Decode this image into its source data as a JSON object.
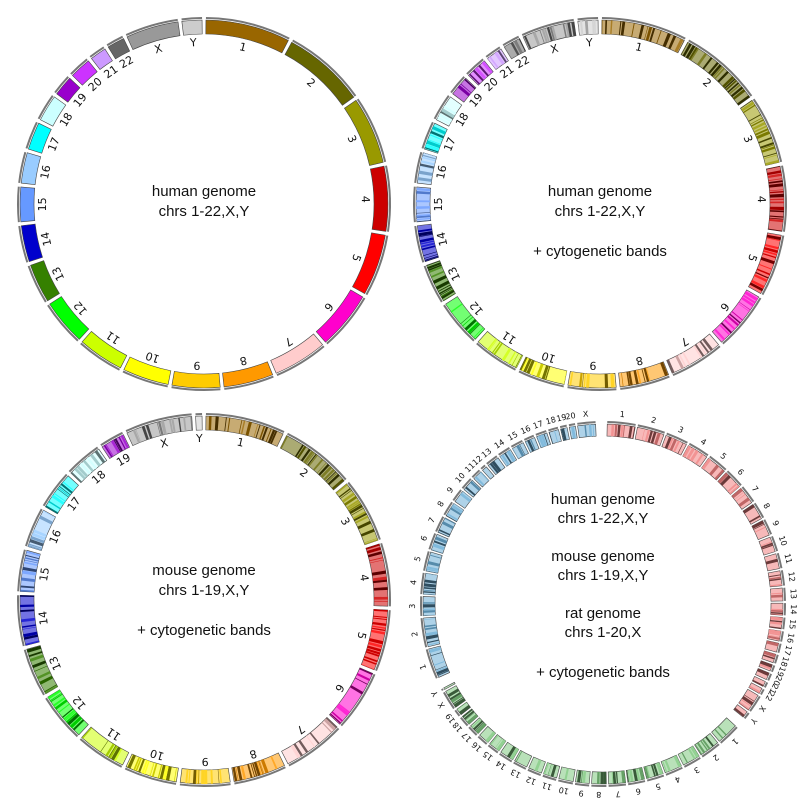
{
  "panels": [
    {
      "id": "human",
      "text_lines": [
        "human genome",
        "chrs 1-22,X,Y"
      ],
      "banded": false,
      "chromosomes": [
        {
          "label": "1",
          "size": 249,
          "color": "#996600"
        },
        {
          "label": "2",
          "size": 243,
          "color": "#666600"
        },
        {
          "label": "3",
          "size": 198,
          "color": "#999900"
        },
        {
          "label": "4",
          "size": 191,
          "color": "#cc0000"
        },
        {
          "label": "5",
          "size": 181,
          "color": "#ff0000"
        },
        {
          "label": "6",
          "size": 171,
          "color": "#ff00cc"
        },
        {
          "label": "7",
          "size": 159,
          "color": "#ffcccc"
        },
        {
          "label": "8",
          "size": 146,
          "color": "#ff9900"
        },
        {
          "label": "9",
          "size": 141,
          "color": "#ffcc00"
        },
        {
          "label": "10",
          "size": 136,
          "color": "#ffff00"
        },
        {
          "label": "11",
          "size": 135,
          "color": "#ccff00"
        },
        {
          "label": "12",
          "size": 134,
          "color": "#00ff00"
        },
        {
          "label": "13",
          "size": 115,
          "color": "#358000"
        },
        {
          "label": "14",
          "size": 107,
          "color": "#0000cc"
        },
        {
          "label": "15",
          "size": 102,
          "color": "#6699ff"
        },
        {
          "label": "16",
          "size": 90,
          "color": "#99ccff"
        },
        {
          "label": "17",
          "size": 81,
          "color": "#00ffff"
        },
        {
          "label": "18",
          "size": 78,
          "color": "#ccffff"
        },
        {
          "label": "19",
          "size": 59,
          "color": "#9900cc"
        },
        {
          "label": "20",
          "size": 63,
          "color": "#cc33ff"
        },
        {
          "label": "21",
          "size": 48,
          "color": "#cc99ff"
        },
        {
          "label": "22",
          "size": 51,
          "color": "#666666"
        },
        {
          "label": "X",
          "size": 155,
          "color": "#999999"
        },
        {
          "label": "Y",
          "size": 59,
          "color": "#cccccc"
        }
      ]
    },
    {
      "id": "human-bands",
      "text_lines": [
        "human genome",
        "chrs 1-22,X,Y",
        "",
        "+ cytogenetic bands"
      ],
      "banded": true,
      "chromosomes": [
        {
          "label": "1",
          "size": 249,
          "color": "#996600"
        },
        {
          "label": "2",
          "size": 243,
          "color": "#666600"
        },
        {
          "label": "3",
          "size": 198,
          "color": "#999900"
        },
        {
          "label": "4",
          "size": 191,
          "color": "#cc0000"
        },
        {
          "label": "5",
          "size": 181,
          "color": "#ff0000"
        },
        {
          "label": "6",
          "size": 171,
          "color": "#ff00cc"
        },
        {
          "label": "7",
          "size": 159,
          "color": "#ffcccc"
        },
        {
          "label": "8",
          "size": 146,
          "color": "#ff9900"
        },
        {
          "label": "9",
          "size": 141,
          "color": "#ffcc00"
        },
        {
          "label": "10",
          "size": 136,
          "color": "#ffff00"
        },
        {
          "label": "11",
          "size": 135,
          "color": "#ccff00"
        },
        {
          "label": "12",
          "size": 134,
          "color": "#00ff00"
        },
        {
          "label": "13",
          "size": 115,
          "color": "#358000"
        },
        {
          "label": "14",
          "size": 107,
          "color": "#0000cc"
        },
        {
          "label": "15",
          "size": 102,
          "color": "#6699ff"
        },
        {
          "label": "16",
          "size": 90,
          "color": "#99ccff"
        },
        {
          "label": "17",
          "size": 81,
          "color": "#00ffff"
        },
        {
          "label": "18",
          "size": 78,
          "color": "#ccffff"
        },
        {
          "label": "19",
          "size": 59,
          "color": "#9900cc"
        },
        {
          "label": "20",
          "size": 63,
          "color": "#cc33ff"
        },
        {
          "label": "21",
          "size": 48,
          "color": "#cc99ff"
        },
        {
          "label": "22",
          "size": 51,
          "color": "#666666"
        },
        {
          "label": "X",
          "size": 155,
          "color": "#999999"
        },
        {
          "label": "Y",
          "size": 59,
          "color": "#cccccc"
        }
      ]
    },
    {
      "id": "mouse-bands",
      "text_lines": [
        "mouse genome",
        "chrs 1-19,X,Y",
        "",
        "+ cytogenetic bands"
      ],
      "banded": true,
      "chromosomes": [
        {
          "label": "1",
          "size": 197,
          "color": "#996600"
        },
        {
          "label": "2",
          "size": 182,
          "color": "#666600"
        },
        {
          "label": "3",
          "size": 160,
          "color": "#999900"
        },
        {
          "label": "4",
          "size": 156,
          "color": "#cc0000"
        },
        {
          "label": "5",
          "size": 152,
          "color": "#ff0000"
        },
        {
          "label": "6",
          "size": 150,
          "color": "#ff00cc"
        },
        {
          "label": "7",
          "size": 152,
          "color": "#ffcccc"
        },
        {
          "label": "8",
          "size": 131,
          "color": "#ff9900"
        },
        {
          "label": "9",
          "size": 124,
          "color": "#ffcc00"
        },
        {
          "label": "10",
          "size": 130,
          "color": "#ffff00"
        },
        {
          "label": "11",
          "size": 122,
          "color": "#ccff00"
        },
        {
          "label": "12",
          "size": 121,
          "color": "#00ff00"
        },
        {
          "label": "13",
          "size": 120,
          "color": "#358000"
        },
        {
          "label": "14",
          "size": 125,
          "color": "#0000cc"
        },
        {
          "label": "15",
          "size": 103,
          "color": "#6699ff"
        },
        {
          "label": "16",
          "size": 98,
          "color": "#99ccff"
        },
        {
          "label": "17",
          "size": 95,
          "color": "#00ffff"
        },
        {
          "label": "18",
          "size": 91,
          "color": "#ccffff"
        },
        {
          "label": "19",
          "size": 61,
          "color": "#9900cc"
        },
        {
          "label": "X",
          "size": 166,
          "color": "#999999"
        },
        {
          "label": "Y",
          "size": 16,
          "color": "#cccccc"
        }
      ]
    },
    {
      "id": "three-genomes",
      "text_lines": [
        "human genome",
        "chrs 1-22,X,Y",
        "",
        "mouse genome",
        "chrs 1-19,X,Y",
        "",
        "rat genome",
        "chrs 1-20,X",
        "",
        "+ cytogenetic bands"
      ],
      "banded": true,
      "genomes": [
        {
          "name": "human",
          "color": "#f08080",
          "labels": [
            "1",
            "2",
            "3",
            "4",
            "5",
            "6",
            "7",
            "8",
            "9",
            "10",
            "11",
            "12",
            "13",
            "14",
            "15",
            "16",
            "17",
            "18",
            "19",
            "20",
            "21",
            "22",
            "X",
            "Y"
          ],
          "sizes": [
            249,
            243,
            198,
            191,
            181,
            171,
            159,
            146,
            141,
            136,
            135,
            134,
            115,
            107,
            102,
            90,
            81,
            78,
            59,
            63,
            48,
            51,
            155,
            59
          ]
        },
        {
          "name": "mouse",
          "color": "#7fc97f",
          "labels": [
            "1",
            "2",
            "3",
            "4",
            "5",
            "6",
            "7",
            "8",
            "9",
            "10",
            "11",
            "12",
            "13",
            "14",
            "15",
            "16",
            "17",
            "18",
            "19",
            "X",
            "Y"
          ],
          "sizes": [
            197,
            182,
            160,
            156,
            152,
            150,
            152,
            131,
            124,
            130,
            122,
            121,
            120,
            125,
            103,
            98,
            95,
            91,
            61,
            166,
            16
          ]
        },
        {
          "name": "rat",
          "color": "#6baed6",
          "labels": [
            "1",
            "2",
            "3",
            "4",
            "5",
            "6",
            "7",
            "8",
            "9",
            "10",
            "11",
            "12",
            "13",
            "14",
            "15",
            "16",
            "17",
            "18",
            "19",
            "20",
            "X"
          ],
          "sizes": [
            267,
            258,
            171,
            187,
            173,
            147,
            143,
            129,
            113,
            110,
            87,
            46,
            111,
            112,
            109,
            90,
            97,
            87,
            59,
            55,
            160
          ]
        }
      ]
    }
  ]
}
